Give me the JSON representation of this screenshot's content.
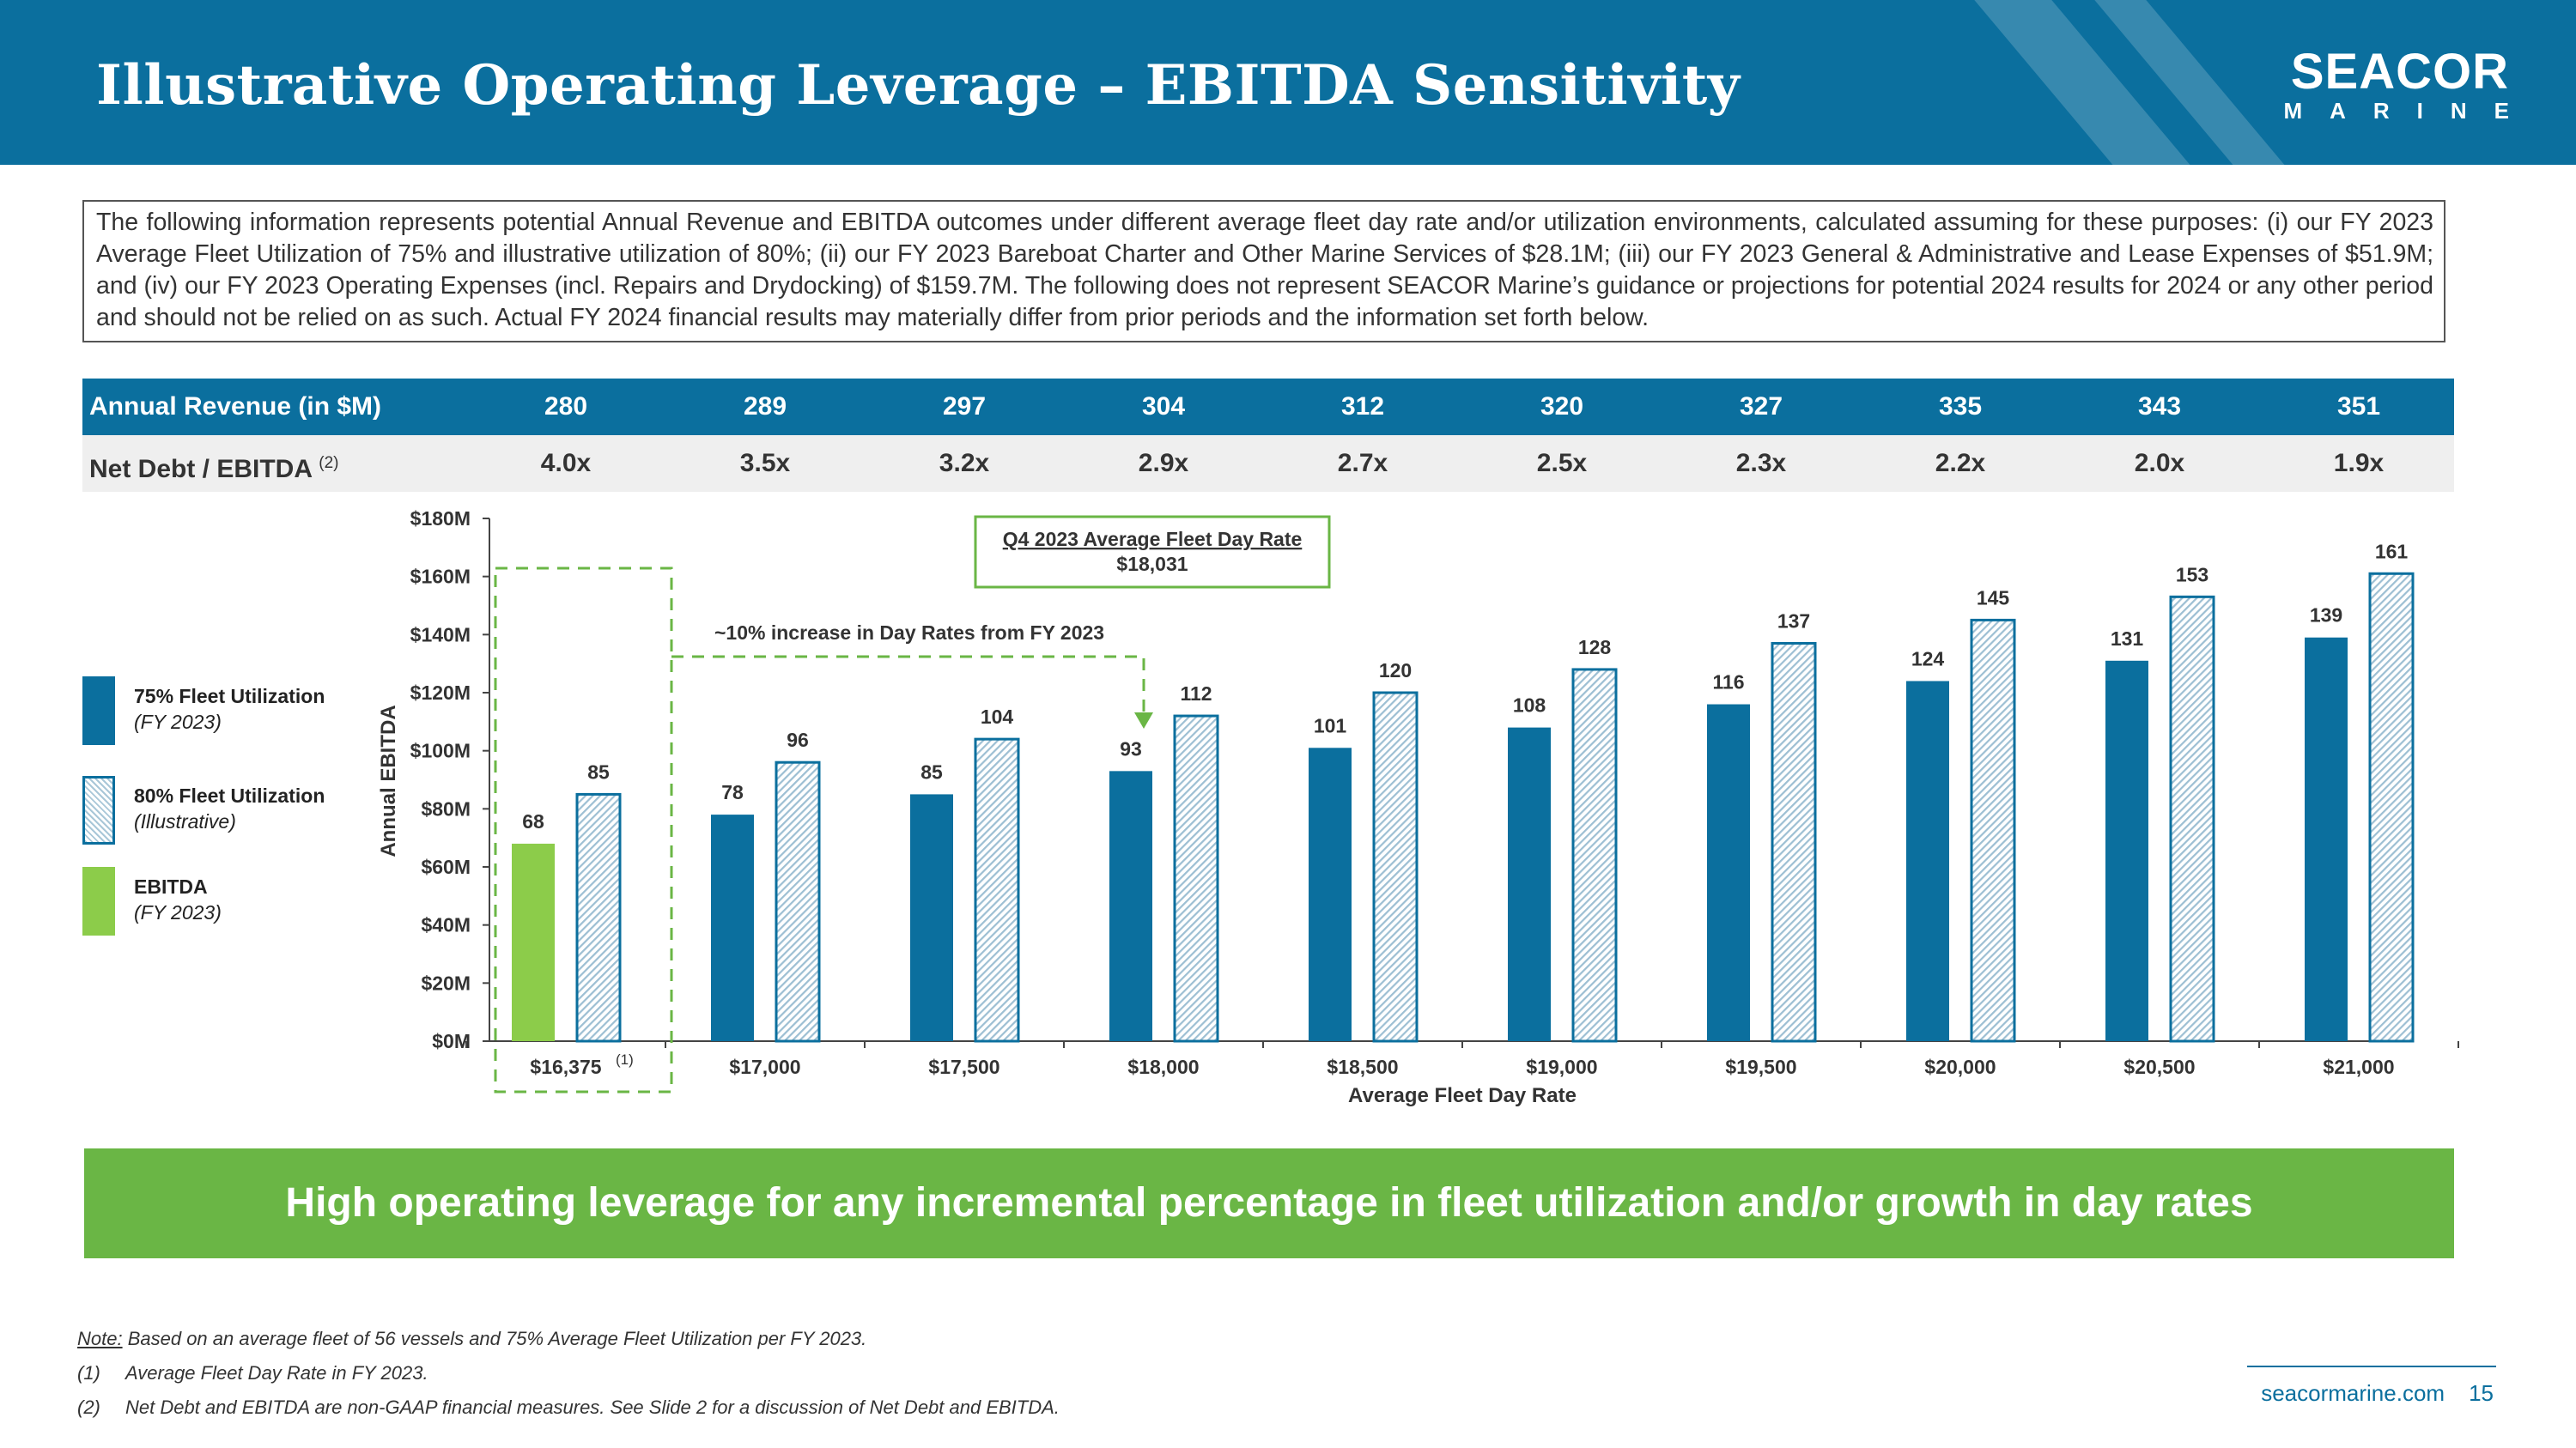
{
  "header": {
    "title": "Illustrative Operating Leverage – EBITDA Sensitivity",
    "logo_top": "SEACOR",
    "logo_bottom": "MARINE"
  },
  "intro_text": "The following information represents potential Annual Revenue and EBITDA outcomes under different average fleet day rate and/or utilization environments, calculated assuming for these purposes: (i) our FY 2023 Average Fleet Utilization of 75% and illustrative utilization of 80%; (ii) our FY 2023 Bareboat Charter and Other Marine Services of $28.1M; (iii) our FY 2023 General & Administrative and Lease Expenses of $51.9M; and (iv) our FY 2023 Operating Expenses (incl. Repairs and Drydocking) of $159.7M. The following does not represent SEACOR Marine’s guidance or projections for potential 2024 results for 2024 or any other period and should not be relied on as such. Actual FY 2024 financial results may materially differ from prior periods and the information set forth below.",
  "table": {
    "revenue_label": "Annual Revenue (in $M)",
    "revenue": [
      "280",
      "289",
      "297",
      "304",
      "312",
      "320",
      "327",
      "335",
      "343",
      "351"
    ],
    "leverage_label": "Net Debt / EBITDA",
    "leverage_sup": "(2)",
    "leverage": [
      "4.0x",
      "3.5x",
      "3.2x",
      "2.9x",
      "2.7x",
      "2.5x",
      "2.3x",
      "2.2x",
      "2.0x",
      "1.9x"
    ]
  },
  "legend": [
    {
      "label": "75% Fleet Utilization",
      "sub": "(FY 2023)",
      "color": "#0b6f9e",
      "style": "solid"
    },
    {
      "label": "80% Fleet Utilization",
      "sub": "(Illustrative)",
      "color": "#0b6f9e",
      "style": "hatched"
    },
    {
      "label": "EBITDA",
      "sub": "(FY 2023)",
      "color": "#8ccc4a",
      "style": "solid"
    }
  ],
  "chart_data": {
    "type": "bar",
    "xlabel": "Average Fleet Day Rate",
    "ylabel": "Annual EBITDA",
    "ylim": [
      0,
      180
    ],
    "yticks": [
      "$0M",
      "$20M",
      "$40M",
      "$60M",
      "$80M",
      "$100M",
      "$120M",
      "$140M",
      "$160M",
      "$180M"
    ],
    "categories": [
      "$16,375",
      "$17,000",
      "$17,500",
      "$18,000",
      "$18,500",
      "$19,000",
      "$19,500",
      "$20,000",
      "$20,500",
      "$21,000"
    ],
    "first_category_sup": "(1)",
    "series": [
      {
        "name": "75% Fleet Utilization",
        "values": [
          68,
          78,
          85,
          93,
          101,
          108,
          116,
          124,
          131,
          139
        ]
      },
      {
        "name": "80% Fleet Utilization",
        "values": [
          85,
          96,
          104,
          112,
          120,
          128,
          137,
          145,
          153,
          161
        ]
      }
    ],
    "first_bar_note": "First 75% bar is EBITDA (FY 2023)",
    "annotations": {
      "day_rate_box_title": "Q4 2023 Average Fleet Day Rate",
      "day_rate_box_value": "$18,031",
      "increase_label": "~10% increase in Day Rates from FY 2023"
    },
    "colors": {
      "solid": "#0b6f9e",
      "ebitda": "#8ccc4a",
      "hatch": "#0b6f9e",
      "dash": "#6ab645"
    }
  },
  "banner": "High operating leverage for any incremental percentage in fleet utilization and/or growth in day rates",
  "notes": {
    "note_label": "Note:",
    "note_text": " Based on an average fleet of 56 vessels and 75% Average Fleet Utilization per FY 2023.",
    "items": [
      {
        "num": "(1)",
        "text": "Average Fleet Day Rate in FY 2023."
      },
      {
        "num": "(2)",
        "text": "Net Debt and EBITDA are non-GAAP financial measures. See Slide 2 for a discussion of Net Debt and EBITDA."
      }
    ]
  },
  "footer": {
    "site": "seacormarine.com",
    "page": "15"
  }
}
